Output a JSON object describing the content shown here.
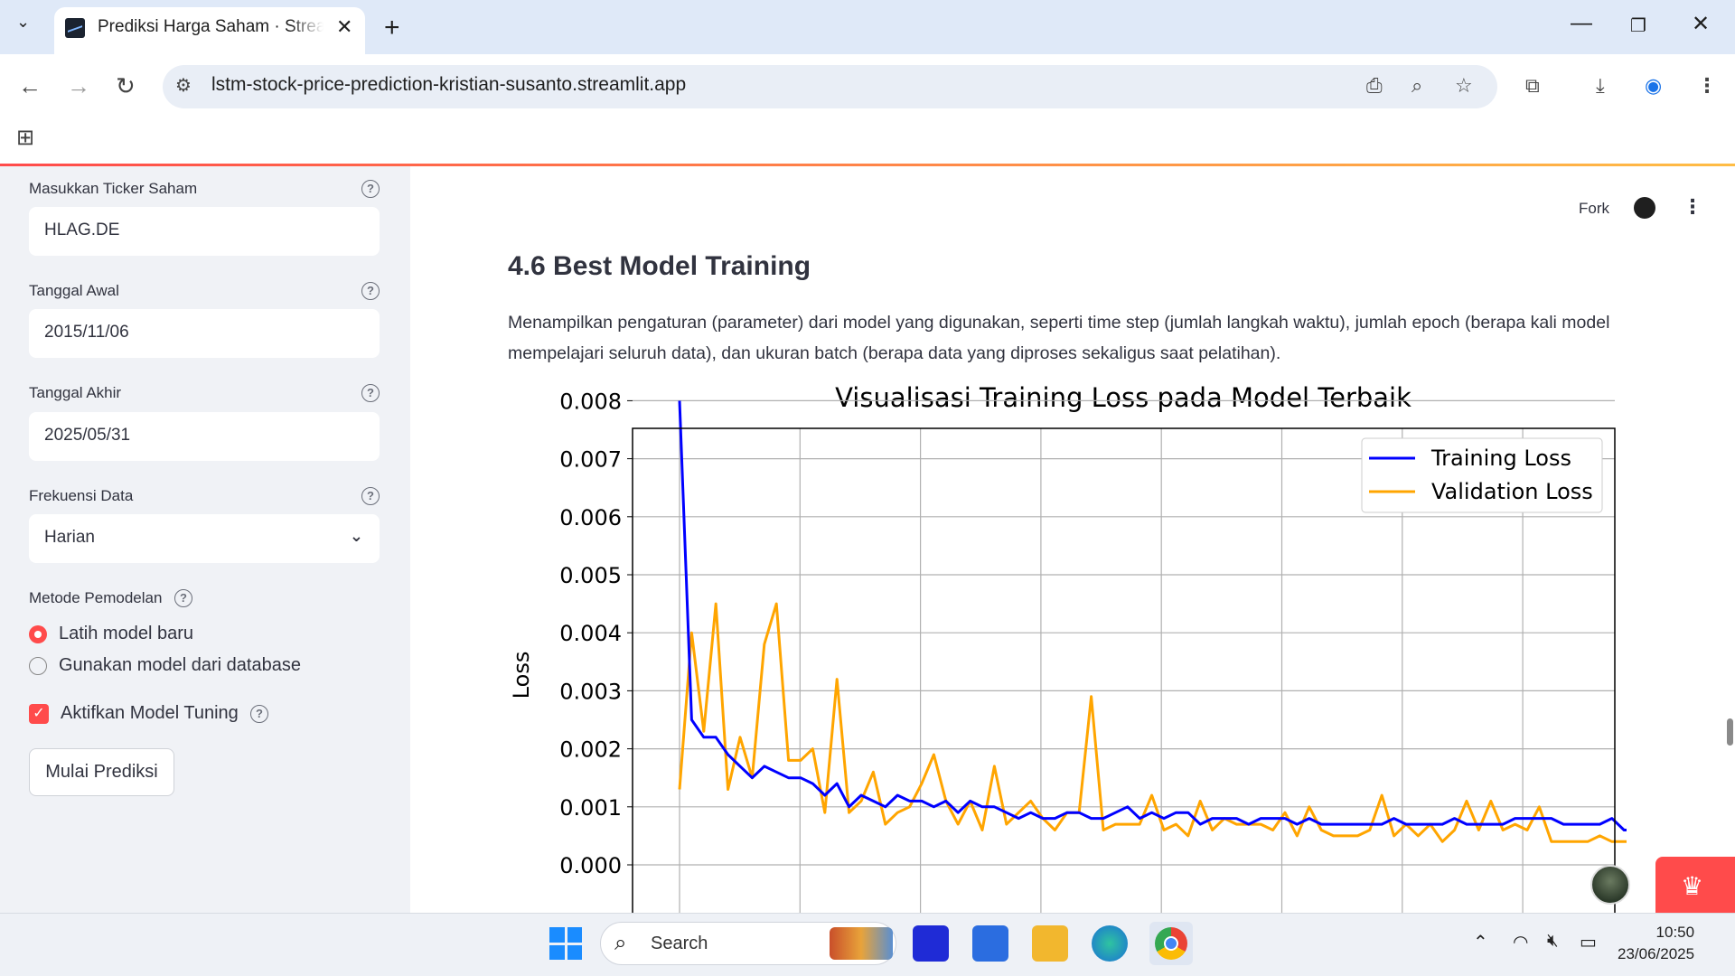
{
  "browser": {
    "tab_title": "Prediksi Harga Saham · Streamlit",
    "url": "lstm-stock-price-prediction-kristian-susanto.streamlit.app"
  },
  "header": {
    "fork_label": "Fork"
  },
  "sidebar": {
    "ticker_label": "Masukkan Ticker Saham",
    "ticker_value": "HLAG.DE",
    "start_label": "Tanggal Awal",
    "start_value": "2015/11/06",
    "end_label": "Tanggal Akhir",
    "end_value": "2025/05/31",
    "freq_label": "Frekuensi Data",
    "freq_value": "Harian",
    "method_label": "Metode Pemodelan",
    "method_options": [
      "Latih model baru",
      "Gunakan model dari database"
    ],
    "method_selected": 0,
    "tuning_label": "Aktifkan Model Tuning",
    "tuning_checked": true,
    "run_button": "Mulai Prediksi"
  },
  "main": {
    "heading": "4.6 Best Model Training",
    "paragraph": "Menampilkan pengaturan (parameter) dari model yang digunakan, seperti time step (jumlah langkah waktu), jumlah epoch (berapa kali model mempelajari seluruh data), dan ukuran batch (berapa data yang diproses sekaligus saat pelatihan)."
  },
  "chart_data": {
    "type": "line",
    "title": "Visualisasi Training Loss pada Model Terbaik",
    "xlabel": "",
    "ylabel": "Loss",
    "yticks": [
      "0.008",
      "0.007",
      "0.006",
      "0.005",
      "0.004",
      "0.003",
      "0.002",
      "0.001",
      "0.000"
    ],
    "ylim": [
      0,
      0.0083
    ],
    "grid": true,
    "legend": "top-right",
    "series": [
      {
        "name": "Training Loss",
        "color": "#0000ff",
        "values": [
          0.008,
          0.0025,
          0.0022,
          0.0022,
          0.0019,
          0.0017,
          0.0015,
          0.0017,
          0.0016,
          0.0015,
          0.0015,
          0.0014,
          0.0012,
          0.0014,
          0.001,
          0.0012,
          0.0011,
          0.001,
          0.0012,
          0.0011,
          0.0011,
          0.001,
          0.0011,
          0.0009,
          0.0011,
          0.001,
          0.001,
          0.0009,
          0.0008,
          0.0009,
          0.0008,
          0.0008,
          0.0009,
          0.0009,
          0.0008,
          0.0008,
          0.0009,
          0.001,
          0.0008,
          0.0009,
          0.0008,
          0.0009,
          0.0009,
          0.0007,
          0.0008,
          0.0008,
          0.0008,
          0.0007,
          0.0008,
          0.0008,
          0.0008,
          0.0007,
          0.0008,
          0.0007,
          0.0007,
          0.0007,
          0.0007,
          0.0007,
          0.0007,
          0.0008,
          0.0007,
          0.0007,
          0.0007,
          0.0007,
          0.0008,
          0.0007,
          0.0007,
          0.0007,
          0.0007,
          0.0008,
          0.0008,
          0.0008,
          0.0008,
          0.0007,
          0.0007,
          0.0007,
          0.0007,
          0.0008,
          0.0006,
          0.0006
        ]
      },
      {
        "name": "Validation Loss",
        "color": "#ffa500",
        "values": [
          0.0013,
          0.004,
          0.0023,
          0.0045,
          0.0013,
          0.0022,
          0.0015,
          0.0038,
          0.0045,
          0.0018,
          0.0018,
          0.002,
          0.0009,
          0.0032,
          0.0009,
          0.0011,
          0.0016,
          0.0007,
          0.0009,
          0.001,
          0.0014,
          0.0019,
          0.0011,
          0.0007,
          0.0011,
          0.0006,
          0.0017,
          0.0007,
          0.0009,
          0.0011,
          0.0008,
          0.0006,
          0.0009,
          0.0009,
          0.0029,
          0.0006,
          0.0007,
          0.0007,
          0.0007,
          0.0012,
          0.0006,
          0.0007,
          0.0005,
          0.0011,
          0.0006,
          0.0008,
          0.0007,
          0.0007,
          0.0007,
          0.0006,
          0.0009,
          0.0005,
          0.001,
          0.0006,
          0.0005,
          0.0005,
          0.0005,
          0.0006,
          0.0012,
          0.0005,
          0.0007,
          0.0005,
          0.0007,
          0.0004,
          0.0006,
          0.0011,
          0.0006,
          0.0011,
          0.0006,
          0.0007,
          0.0006,
          0.001,
          0.0004,
          0.0004,
          0.0004,
          0.0004,
          0.0005,
          0.0004,
          0.0004,
          0.0004
        ]
      }
    ]
  },
  "taskbar": {
    "search_placeholder": "Search",
    "time": "10:50",
    "date": "23/06/2025"
  }
}
